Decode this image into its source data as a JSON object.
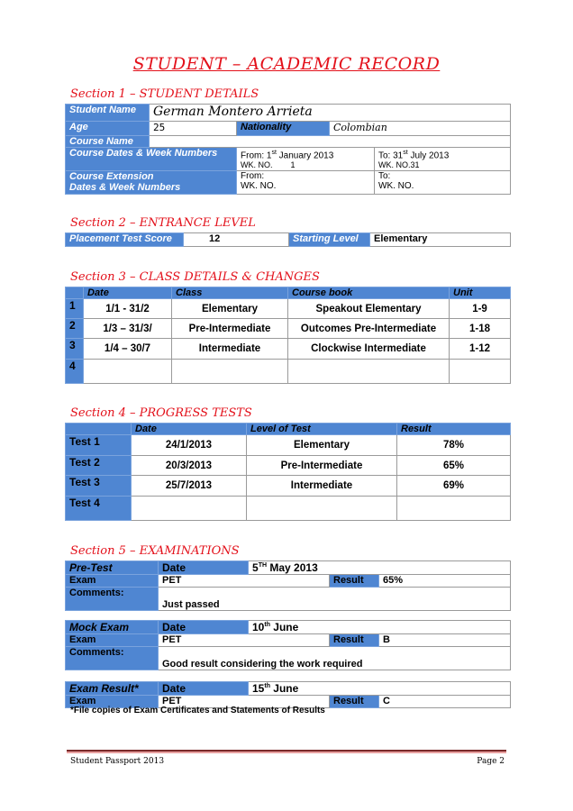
{
  "title": "STUDENT – ACADEMIC RECORD",
  "s1": {
    "heading": "Section 1 – STUDENT DETAILS",
    "name_label": "Student Name",
    "name": "German Montero Arrieta",
    "age_label": "Age",
    "age": "25",
    "nat_label": "Nationality",
    "nationality": "Colombian",
    "course_label": "Course Name",
    "course": "",
    "dates_label": "Course Dates & Week Numbers",
    "from_pre": "From:  1",
    "from_sup": "st",
    "from_post": " January 2013",
    "from_wk": "WK. NO.        1",
    "to_pre": "To: 31",
    "to_sup": "st",
    "to_post": " July 2013",
    "to_wk": "WK. NO.31",
    "ext_label1": "Course Extension",
    "ext_label2": "Dates & Week Numbers",
    "ext_from": "From:",
    "ext_from_wk": "WK. NO.",
    "ext_to": "To:",
    "ext_to_wk": "WK. NO."
  },
  "s2": {
    "heading": "Section 2 – ENTRANCE LEVEL",
    "placement_label": "Placement Test Score",
    "placement": "12",
    "start_label": "Starting Level",
    "start": "Elementary"
  },
  "s3": {
    "heading": "Section 3 – CLASS DETAILS & CHANGES",
    "headers": [
      "Date",
      "Class",
      "Course book",
      "Unit"
    ],
    "rows": [
      {
        "n": "1",
        "date": "1/1 -  31/2",
        "class": "Elementary",
        "book": "Speakout Elementary",
        "unit": "1-9"
      },
      {
        "n": "2",
        "date": "1/3 – 31/3/",
        "class": "Pre-Intermediate",
        "book": "Outcomes Pre-Intermediate",
        "unit": "1-18"
      },
      {
        "n": "3",
        "date": "1/4 – 30/7",
        "class": "Intermediate",
        "book": "Clockwise Intermediate",
        "unit": "1-12"
      },
      {
        "n": "4",
        "date": "",
        "class": "",
        "book": "",
        "unit": ""
      }
    ]
  },
  "s4": {
    "heading": "Section 4 – PROGRESS TESTS",
    "headers": [
      "Date",
      "Level of Test",
      "Result"
    ],
    "rows": [
      {
        "t": "Test 1",
        "date": "24/1/2013",
        "level": "Elementary",
        "result": "78%"
      },
      {
        "t": "Test 2",
        "date": "20/3/2013",
        "level": "Pre-Intermediate",
        "result": "65%"
      },
      {
        "t": "Test 3",
        "date": "25/7/2013",
        "level": "Intermediate",
        "result": "69%"
      },
      {
        "t": "Test 4",
        "date": "",
        "level": "",
        "result": ""
      }
    ]
  },
  "s5": {
    "heading": "Section 5 – EXAMINATIONS",
    "date_label": "Date",
    "exam_label": "Exam",
    "result_label": "Result",
    "comments_label": "Comments:",
    "pre": {
      "title": "Pre-Test",
      "date_pre": "5",
      "date_sup": "TH",
      "date_post": " May 2013",
      "exam": "PET",
      "result": "65%",
      "comments": "Just passed"
    },
    "mock": {
      "title": "Mock Exam",
      "date_pre": "10",
      "date_sup": "th",
      "date_post": " June",
      "exam": "PET",
      "result": "B",
      "comments": "Good result considering the work required"
    },
    "final": {
      "title": "Exam Result*",
      "date_pre": "15",
      "date_sup": "th",
      "date_post": " June",
      "exam": "PET",
      "result": "C"
    },
    "note": "*File copies of Exam Certificates and Statements of Results"
  },
  "footer": {
    "left": "Student Passport 2013",
    "right": "Page 2"
  }
}
